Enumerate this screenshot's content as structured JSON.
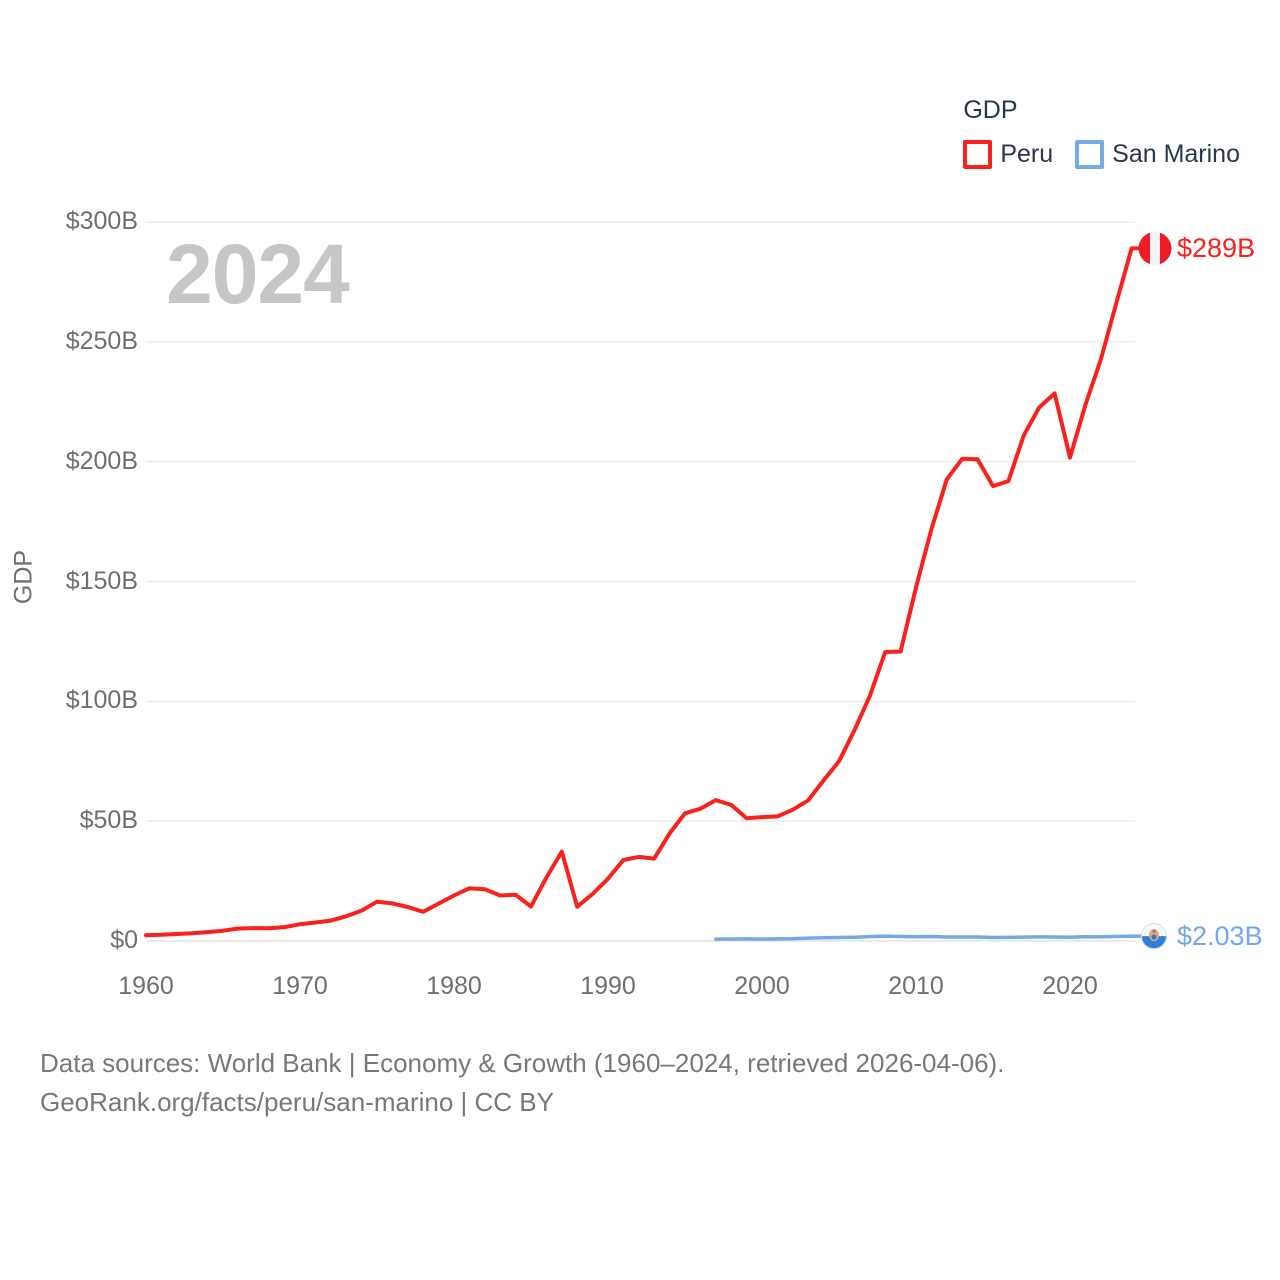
{
  "watermark": "2024",
  "legend": {
    "title": "GDP",
    "items": [
      {
        "label": "Peru",
        "color": "#f8211c"
      },
      {
        "label": "San Marino",
        "color": "#74abe8"
      }
    ]
  },
  "end_labels": {
    "peru": "$289B",
    "san_marino": "$2.03B"
  },
  "footer": {
    "line1": "Data sources: World Bank | Economy & Growth (1960–2024, retrieved 2026-04-06).",
    "line2": "GeoRank.org/facts/peru/san-marino | CC BY"
  },
  "chart_data": {
    "type": "line",
    "title": "GDP",
    "ylabel": "GDP",
    "xlabel": "",
    "xlim": [
      1960,
      2024
    ],
    "ylim": [
      0,
      300
    ],
    "grid": true,
    "legend_position": "top-right",
    "x_ticks": [
      1960,
      1970,
      1980,
      1990,
      2000,
      2010,
      2020
    ],
    "y_ticks": [
      {
        "value": 0,
        "label": "$0"
      },
      {
        "value": 50,
        "label": "$50B"
      },
      {
        "value": 100,
        "label": "$100B"
      },
      {
        "value": 150,
        "label": "$150B"
      },
      {
        "value": 200,
        "label": "$200B"
      },
      {
        "value": 250,
        "label": "$250B"
      },
      {
        "value": 300,
        "label": "$300B"
      }
    ],
    "series": [
      {
        "name": "Peru",
        "color": "#f8211c",
        "line_width": 4,
        "x_start": 1960,
        "end_label": "$289B",
        "values": [
          2.4,
          2.6,
          2.9,
          3.2,
          3.7,
          4.3,
          5.2,
          5.4,
          5.3,
          5.8,
          7.0,
          7.7,
          8.5,
          10.3,
          12.7,
          16.4,
          15.7,
          14.2,
          12.2,
          15.6,
          19.0,
          22.0,
          21.6,
          19.0,
          19.3,
          14.4,
          26.5,
          37.3,
          14.3,
          19.6,
          26.0,
          33.8,
          35.1,
          34.4,
          44.9,
          53.3,
          55.2,
          58.8,
          56.8,
          51.2,
          51.7,
          52.0,
          54.8,
          58.7,
          67.0,
          75.0,
          87.9,
          102.2,
          120.6,
          120.8,
          147.5,
          171.8,
          192.6,
          201.2,
          201.0,
          189.8,
          191.9,
          211.0,
          222.6,
          228.5,
          201.7,
          223.7,
          242.6,
          266.0,
          289.0
        ]
      },
      {
        "name": "San Marino",
        "color": "#72a9e6",
        "line_width": 3.5,
        "x_start": 1997,
        "end_label": "$2.03B",
        "values": [
          0.78,
          0.85,
          0.87,
          0.8,
          0.88,
          0.97,
          1.21,
          1.38,
          1.46,
          1.58,
          1.85,
          2.06,
          1.89,
          1.8,
          1.88,
          1.66,
          1.68,
          1.66,
          1.46,
          1.52,
          1.61,
          1.72,
          1.66,
          1.56,
          1.75,
          1.78,
          1.89,
          2.03
        ]
      }
    ]
  }
}
